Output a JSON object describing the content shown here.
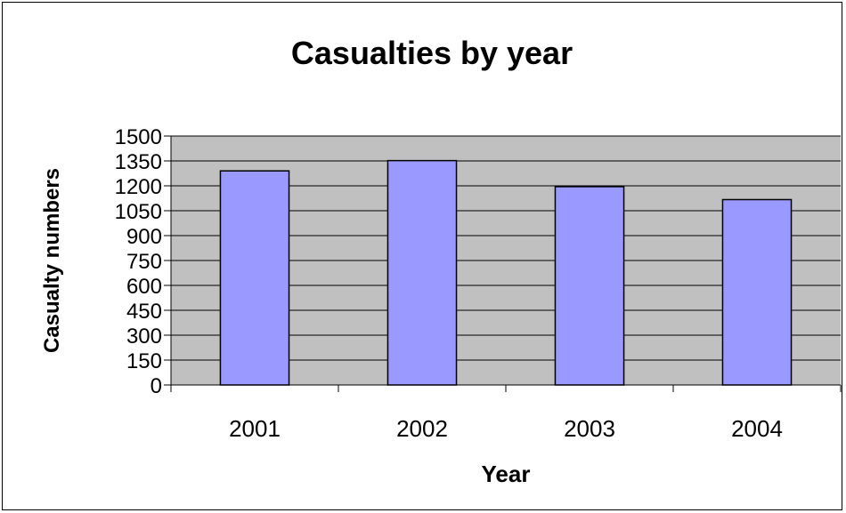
{
  "chart_data": {
    "type": "bar",
    "title": "Casualties by year",
    "xlabel": "Year",
    "ylabel": "Casualty numbers",
    "categories": [
      "2001",
      "2002",
      "2003",
      "2004"
    ],
    "values": [
      1290,
      1352,
      1195,
      1117
    ],
    "ylim": [
      0,
      1500
    ],
    "yticks": [
      0,
      150,
      300,
      450,
      600,
      750,
      900,
      1050,
      1200,
      1350,
      1500
    ],
    "grid": true,
    "legend": "none",
    "colors": {
      "bar_fill": "#9999ff",
      "bar_stroke": "#000000",
      "plot_background": "#c0c0c0",
      "gridline": "#000000"
    }
  }
}
